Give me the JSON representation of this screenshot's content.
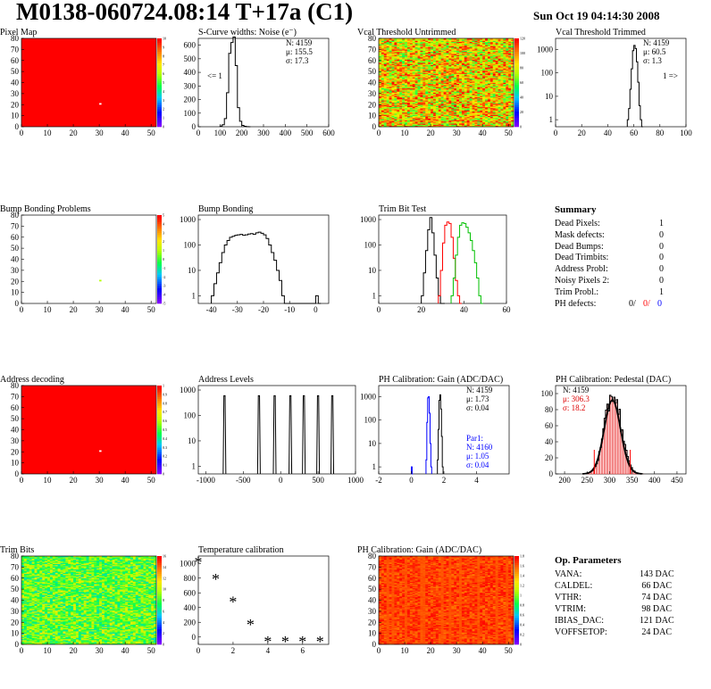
{
  "title": "M0138-060724.08:14 T+17a (C1)",
  "date": "Sun Oct 19 04:14:30 2008",
  "chart_data": [
    {
      "id": "pixel-map",
      "type": "heatmap",
      "title": "Pixel Map",
      "xlim": [
        0,
        52
      ],
      "ylim": [
        0,
        80
      ],
      "xticks": [
        0,
        10,
        20,
        30,
        40,
        50
      ],
      "yticks": [
        0,
        10,
        20,
        30,
        40,
        50,
        60,
        70,
        80
      ],
      "zticks": [
        0,
        1,
        2,
        3,
        4,
        5,
        6,
        7,
        8,
        9,
        10
      ],
      "fill": "uniform",
      "value": 10,
      "hot_pixels": [
        [
          30,
          20,
          0
        ]
      ]
    },
    {
      "id": "scurve",
      "type": "histogram",
      "title": "S-Curve widths: Noise (e⁻)",
      "xlim": [
        0,
        600
      ],
      "ylim": [
        0,
        650
      ],
      "xticks": [
        0,
        100,
        200,
        300,
        400,
        500,
        600
      ],
      "yticks": [
        0,
        100,
        200,
        300,
        400,
        500,
        600
      ],
      "stats": [
        "N: 4159",
        "μ: 155.5",
        "σ: 17.3"
      ],
      "note": "<= 1",
      "bins_x": [
        100,
        110,
        120,
        130,
        140,
        150,
        160,
        170,
        180,
        190,
        200,
        210,
        220,
        230
      ],
      "values": [
        5,
        15,
        60,
        250,
        540,
        620,
        660,
        450,
        140,
        40,
        10,
        3,
        1,
        0
      ]
    },
    {
      "id": "vcal-untrimmed",
      "type": "heatmap",
      "title": "Vcal Threshold Untrimmed",
      "xlim": [
        0,
        52
      ],
      "ylim": [
        0,
        80
      ],
      "xticks": [
        0,
        10,
        20,
        30,
        40,
        50
      ],
      "yticks": [
        0,
        10,
        20,
        30,
        40,
        50,
        60,
        70,
        80
      ],
      "zticks": [
        0,
        20,
        40,
        60,
        80,
        100,
        120
      ],
      "fill": "random",
      "range": [
        55,
        120
      ]
    },
    {
      "id": "vcal-trimmed",
      "type": "histogram",
      "title": "Vcal Threshold Trimmed",
      "log": true,
      "xlim": [
        0,
        100
      ],
      "ylim": [
        0.5,
        3000
      ],
      "xticks": [
        0,
        20,
        40,
        60,
        80,
        100
      ],
      "yticks": [
        1,
        10,
        100,
        1000
      ],
      "stats": [
        "N: 4159",
        "μ: 60.5",
        "σ: 1.3"
      ],
      "note": "1 =>",
      "bins_x": [
        55,
        56,
        57,
        58,
        59,
        60,
        61,
        62,
        63,
        64,
        65,
        66
      ],
      "values": [
        1,
        3,
        20,
        150,
        900,
        1500,
        1100,
        300,
        40,
        4,
        1,
        0
      ]
    },
    {
      "id": "bump-problems",
      "type": "heatmap",
      "title": "Bump Bonding Problems",
      "xlim": [
        0,
        52
      ],
      "ylim": [
        0,
        80
      ],
      "xticks": [
        0,
        10,
        20,
        30,
        40,
        50
      ],
      "yticks": [
        0,
        10,
        20,
        30,
        40,
        50,
        60,
        70,
        80
      ],
      "zticks": [
        -5,
        -4,
        -3,
        -2,
        -1,
        0,
        1,
        2,
        3,
        4,
        5
      ],
      "fill": "empty",
      "hot_pixels": [
        [
          30,
          20,
          1
        ]
      ]
    },
    {
      "id": "bump-bonding",
      "type": "histogram",
      "title": "Bump Bonding",
      "log": true,
      "xlim": [
        -45,
        5
      ],
      "ylim": [
        0.5,
        1500
      ],
      "xticks": [
        -40,
        -30,
        -20,
        -10,
        0
      ],
      "yticks": [
        1,
        10,
        100,
        1000
      ],
      "bins_x": [
        -40,
        -39,
        -38,
        -37,
        -36,
        -35,
        -34,
        -33,
        -32,
        -31,
        -30,
        -29,
        -28,
        -27,
        -26,
        -25,
        -24,
        -23,
        -22,
        -21,
        -20,
        -19,
        -18,
        -17,
        -16,
        -15,
        -14,
        -13,
        -12,
        -11,
        -10,
        -9,
        -8,
        -7,
        -6,
        -5,
        -4,
        -3,
        -2,
        -1,
        0,
        1
      ],
      "values": [
        1,
        3,
        8,
        20,
        50,
        100,
        150,
        200,
        220,
        240,
        250,
        260,
        240,
        250,
        270,
        280,
        260,
        300,
        320,
        290,
        250,
        180,
        100,
        50,
        25,
        10,
        4,
        1,
        0,
        0,
        0,
        0,
        0,
        0,
        0,
        0,
        0,
        0,
        0,
        0,
        1,
        0
      ]
    },
    {
      "id": "trim-bit-test",
      "type": "histogram",
      "title": "Trim Bit Test",
      "log": true,
      "xlim": [
        0,
        60
      ],
      "ylim": [
        0.5,
        1500
      ],
      "xticks": [
        0,
        20,
        40,
        60
      ],
      "yticks": [
        1,
        10,
        100,
        1000
      ],
      "series": [
        {
          "color": "#000000",
          "bins_x": [
            20,
            21,
            22,
            23,
            24,
            25,
            26,
            27,
            28,
            29,
            30
          ],
          "values": [
            1,
            8,
            60,
            400,
            1200,
            300,
            40,
            5,
            1,
            0,
            0
          ]
        },
        {
          "color": "#ff0000",
          "bins_x": [
            28,
            29,
            30,
            31,
            32,
            33,
            34,
            35,
            36,
            37,
            38
          ],
          "values": [
            1,
            10,
            120,
            600,
            800,
            700,
            200,
            30,
            4,
            1,
            0
          ]
        },
        {
          "color": "#00c000",
          "bins_x": [
            34,
            35,
            36,
            37,
            38,
            39,
            40,
            41,
            42,
            43,
            44,
            45,
            46,
            47,
            48
          ],
          "values": [
            1,
            5,
            40,
            200,
            600,
            750,
            700,
            500,
            300,
            150,
            60,
            20,
            5,
            1,
            0
          ]
        }
      ]
    },
    {
      "id": "address-decoding",
      "type": "heatmap",
      "title": "Address decoding",
      "xlim": [
        0,
        52
      ],
      "ylim": [
        0,
        80
      ],
      "xticks": [
        0,
        10,
        20,
        30,
        40,
        50
      ],
      "yticks": [
        0,
        10,
        20,
        30,
        40,
        50,
        60,
        70,
        80
      ],
      "zticks": [
        0,
        0.1,
        0.2,
        0.3,
        0.4,
        0.5,
        0.6,
        0.7,
        0.8,
        0.9,
        1
      ],
      "fill": "uniform",
      "value": 1,
      "hot_pixels": [
        [
          30,
          20,
          0
        ]
      ]
    },
    {
      "id": "address-levels",
      "type": "histogram",
      "title": "Address Levels",
      "log": true,
      "xlim": [
        -1100,
        1000
      ],
      "ylim": [
        0.5,
        1500
      ],
      "xticks": [
        -1000,
        -500,
        0,
        500,
        1000
      ],
      "yticks": [
        1,
        10,
        100,
        1000
      ],
      "peaks": [
        -750,
        -290,
        -80,
        130,
        310,
        500,
        690
      ],
      "peak_height": 600
    },
    {
      "id": "ph-gain",
      "type": "histogram",
      "title": "PH Calibration: Gain (ADC/DAC)",
      "log": true,
      "xlim": [
        -2,
        6
      ],
      "ylim": [
        0.5,
        3000
      ],
      "xticks": [
        -2,
        0,
        2,
        4
      ],
      "yticks": [
        1,
        10,
        100,
        1000
      ],
      "stats": [
        "N: 4159",
        "μ: 1.73",
        "σ: 0.04"
      ],
      "stats2": [
        "Par1:",
        "N: 4160",
        "μ: 1.05",
        "σ: 0.04"
      ],
      "series": [
        {
          "color": "#000000",
          "bins_x": [
            1.6,
            1.65,
            1.7,
            1.75,
            1.8,
            1.85,
            1.9
          ],
          "values": [
            2,
            40,
            700,
            1200,
            300,
            20,
            1
          ]
        },
        {
          "color": "#0000ff",
          "bins_x": [
            0.9,
            0.95,
            1.0,
            1.05,
            1.1,
            1.15,
            1.2
          ],
          "values": [
            2,
            80,
            900,
            1000,
            200,
            10,
            1
          ]
        },
        {
          "color": "#0000ff",
          "bins_x": [
            0.0,
            0.05
          ],
          "values": [
            1,
            0
          ]
        }
      ]
    },
    {
      "id": "ph-pedestal",
      "type": "histogram",
      "title": "PH Calibration: Pedestal (DAC)",
      "xlim": [
        180,
        470
      ],
      "ylim": [
        0,
        110
      ],
      "xticks": [
        200,
        250,
        300,
        350,
        400,
        450
      ],
      "yticks": [
        0,
        20,
        40,
        60,
        80,
        100
      ],
      "stats": [
        "N: 4159",
        "μ: 306.3",
        "σ: 18.2"
      ],
      "mean": 306.3,
      "sigma": 18.2,
      "peak": 100,
      "limits": [
        266,
        346
      ]
    },
    {
      "id": "trim-bits",
      "type": "heatmap",
      "title": "Trim Bits",
      "xlim": [
        0,
        52
      ],
      "ylim": [
        0,
        80
      ],
      "xticks": [
        0,
        10,
        20,
        30,
        40,
        50
      ],
      "yticks": [
        0,
        10,
        20,
        30,
        40,
        50,
        60,
        70,
        80
      ],
      "zticks": [
        0,
        2,
        4,
        6,
        8,
        10,
        12,
        14,
        16
      ],
      "fill": "random",
      "range": [
        6,
        11
      ]
    },
    {
      "id": "temperature",
      "type": "scatter",
      "title": "Temperature calibration",
      "xlim": [
        0,
        7.5
      ],
      "ylim": [
        -100,
        1100
      ],
      "xticks": [
        0,
        2,
        4,
        6
      ],
      "yticks": [
        0,
        200,
        400,
        600,
        800,
        1000
      ],
      "x": [
        0,
        1,
        2,
        3,
        4,
        5,
        6,
        7
      ],
      "y": [
        1030,
        800,
        490,
        180,
        -50,
        -50,
        -50,
        -50
      ]
    },
    {
      "id": "ph-gain-map",
      "type": "heatmap",
      "title": "PH Calibration: Gain (ADC/DAC)",
      "xlim": [
        0,
        52
      ],
      "ylim": [
        0,
        80
      ],
      "xticks": [
        0,
        10,
        20,
        30,
        40,
        50
      ],
      "yticks": [
        0,
        10,
        20,
        30,
        40,
        50,
        60,
        70,
        80
      ],
      "zticks": [
        0,
        0.2,
        0.4,
        0.6,
        0.8,
        1,
        1.2,
        1.4,
        1.6,
        1.8
      ],
      "fill": "random",
      "range": [
        1.55,
        1.8
      ]
    }
  ],
  "summary": {
    "title": "Summary",
    "rows": [
      {
        "label": "Dead Pixels:",
        "value": "1"
      },
      {
        "label": "Mask defects:",
        "value": "0"
      },
      {
        "label": "Dead Bumps:",
        "value": "0"
      },
      {
        "label": "Dead Trimbits:",
        "value": "0"
      },
      {
        "label": "Address Probl:",
        "value": "0"
      },
      {
        "label": "Noisy Pixels 2:",
        "value": "0"
      },
      {
        "label": "Trim Probl.:",
        "value": "1"
      }
    ],
    "ph_label": "PH defects:",
    "ph_values": [
      "0/",
      "0/",
      "0"
    ],
    "ph_colors": [
      "#000000",
      "#ff0000",
      "#0000ff"
    ]
  },
  "op_params": {
    "title": "Op. Parameters",
    "rows": [
      {
        "label": "VANA:",
        "value": "143 DAC"
      },
      {
        "label": "CALDEL:",
        "value": "66 DAC"
      },
      {
        "label": "VTHR:",
        "value": "74 DAC"
      },
      {
        "label": "VTRIM:",
        "value": "98 DAC"
      },
      {
        "label": "IBIAS_DAC:",
        "value": "121 DAC"
      },
      {
        "label": "VOFFSETOP:",
        "value": "24 DAC"
      }
    ]
  }
}
